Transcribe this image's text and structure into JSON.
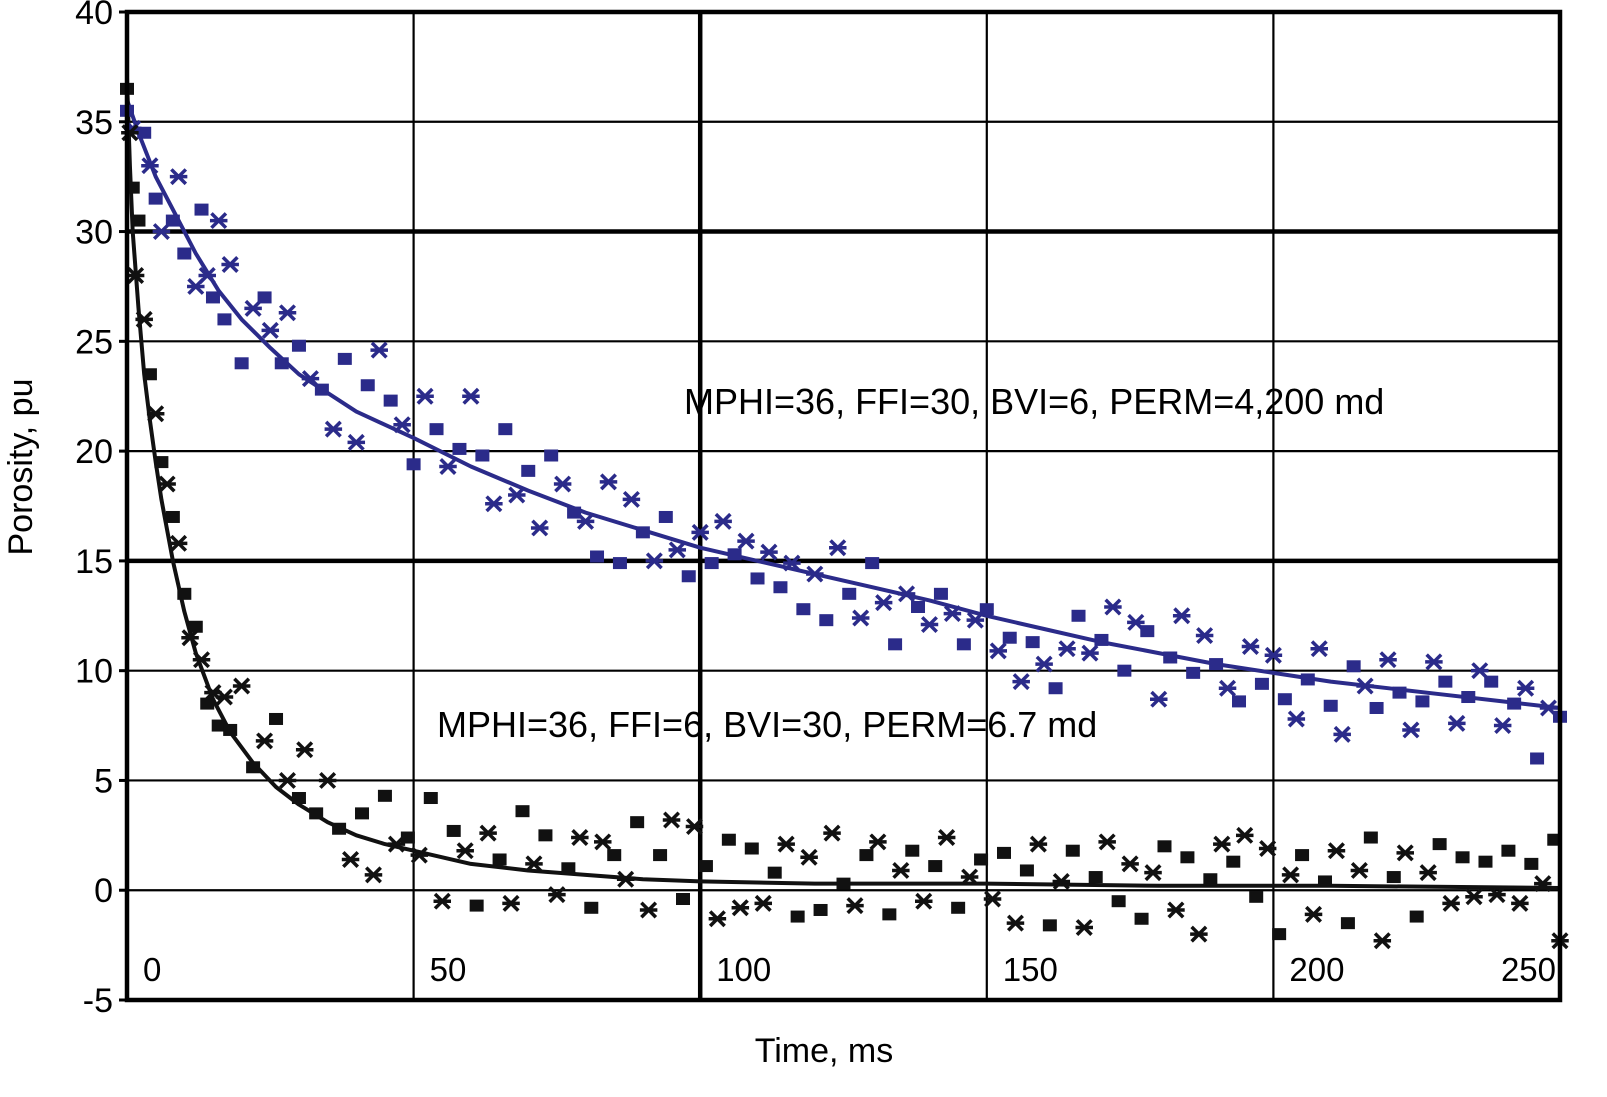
{
  "chart_data": {
    "type": "scatter",
    "xlabel": "Time, ms",
    "ylabel": "Porosity, pu",
    "xlim": [
      0,
      250
    ],
    "ylim": [
      -5,
      40
    ],
    "xticks": [
      "0",
      "50",
      "100",
      "150",
      "200",
      "250"
    ],
    "yticks": [
      "40",
      "35",
      "30",
      "25",
      "20",
      "15",
      "10",
      "5",
      "0",
      "-5"
    ],
    "grid": true,
    "annotations": [
      "MPHI=36, FFI=30, BVI=6, PERM=4,200 md",
      "MPHI=36, FFI=6, BVI=30, PERM=6.7 md"
    ],
    "series": [
      {
        "color": "#2b2b8a",
        "fit": [
          [
            0,
            36
          ],
          [
            2,
            34.5
          ],
          [
            5,
            32.5
          ],
          [
            8,
            31
          ],
          [
            12,
            29
          ],
          [
            16,
            27.3
          ],
          [
            20,
            26
          ],
          [
            25,
            24.7
          ],
          [
            30,
            23.5
          ],
          [
            40,
            21.8
          ],
          [
            50,
            20.6
          ],
          [
            60,
            19.3
          ],
          [
            70,
            18.2
          ],
          [
            80,
            17.2
          ],
          [
            90,
            16.4
          ],
          [
            100,
            15.6
          ],
          [
            110,
            15
          ],
          [
            120,
            14.4
          ],
          [
            130,
            13.8
          ],
          [
            140,
            13.2
          ],
          [
            150,
            12.5
          ],
          [
            160,
            11.9
          ],
          [
            170,
            11.3
          ],
          [
            180,
            10.8
          ],
          [
            190,
            10.3
          ],
          [
            200,
            9.9
          ],
          [
            210,
            9.5
          ],
          [
            220,
            9.2
          ],
          [
            230,
            8.9
          ],
          [
            240,
            8.6
          ],
          [
            250,
            8.3
          ]
        ],
        "points": [
          [
            0,
            35.5
          ],
          [
            1,
            34.7
          ],
          [
            3,
            34.5
          ],
          [
            4,
            33
          ],
          [
            5,
            31.5
          ],
          [
            6,
            30
          ],
          [
            8,
            30.5
          ],
          [
            9,
            32.5
          ],
          [
            10,
            29
          ],
          [
            12,
            27.5
          ],
          [
            13,
            31
          ],
          [
            14,
            28
          ],
          [
            15,
            27
          ],
          [
            16,
            30.5
          ],
          [
            17,
            26
          ],
          [
            18,
            28.5
          ],
          [
            20,
            24
          ],
          [
            22,
            26.5
          ],
          [
            24,
            27
          ],
          [
            25,
            25.5
          ],
          [
            27,
            24
          ],
          [
            28,
            26.3
          ],
          [
            30,
            24.8
          ],
          [
            32,
            23.3
          ],
          [
            34,
            22.8
          ],
          [
            36,
            21
          ],
          [
            38,
            24.2
          ],
          [
            40,
            20.4
          ],
          [
            42,
            23
          ],
          [
            44,
            24.6
          ],
          [
            46,
            22.3
          ],
          [
            48,
            21.2
          ],
          [
            50,
            19.4
          ],
          [
            52,
            22.5
          ],
          [
            54,
            21
          ],
          [
            56,
            19.3
          ],
          [
            58,
            20.1
          ],
          [
            60,
            22.5
          ],
          [
            62,
            19.8
          ],
          [
            64,
            17.6
          ],
          [
            66,
            21
          ],
          [
            68,
            18
          ],
          [
            70,
            19.1
          ],
          [
            72,
            16.5
          ],
          [
            74,
            19.8
          ],
          [
            76,
            18.5
          ],
          [
            78,
            17.2
          ],
          [
            80,
            16.8
          ],
          [
            82,
            15.2
          ],
          [
            84,
            18.6
          ],
          [
            86,
            14.9
          ],
          [
            88,
            17.8
          ],
          [
            90,
            16.3
          ],
          [
            92,
            15
          ],
          [
            94,
            17
          ],
          [
            96,
            15.5
          ],
          [
            98,
            14.3
          ],
          [
            100,
            16.3
          ],
          [
            102,
            14.9
          ],
          [
            104,
            16.8
          ],
          [
            106,
            15.3
          ],
          [
            108,
            15.9
          ],
          [
            110,
            14.2
          ],
          [
            112,
            15.4
          ],
          [
            114,
            13.8
          ],
          [
            116,
            14.9
          ],
          [
            118,
            12.8
          ],
          [
            120,
            14.4
          ],
          [
            122,
            12.3
          ],
          [
            124,
            15.6
          ],
          [
            126,
            13.5
          ],
          [
            128,
            12.4
          ],
          [
            130,
            14.9
          ],
          [
            132,
            13.1
          ],
          [
            134,
            11.2
          ],
          [
            136,
            13.5
          ],
          [
            138,
            12.9
          ],
          [
            140,
            12.1
          ],
          [
            142,
            13.5
          ],
          [
            144,
            12.6
          ],
          [
            146,
            11.2
          ],
          [
            148,
            12.3
          ],
          [
            150,
            12.8
          ],
          [
            152,
            10.9
          ],
          [
            154,
            11.5
          ],
          [
            156,
            9.5
          ],
          [
            158,
            11.3
          ],
          [
            160,
            10.3
          ],
          [
            162,
            9.2
          ],
          [
            164,
            11
          ],
          [
            166,
            12.5
          ],
          [
            168,
            10.8
          ],
          [
            170,
            11.4
          ],
          [
            172,
            12.9
          ],
          [
            174,
            10
          ],
          [
            176,
            12.2
          ],
          [
            178,
            11.8
          ],
          [
            180,
            8.7
          ],
          [
            182,
            10.6
          ],
          [
            184,
            12.5
          ],
          [
            186,
            9.9
          ],
          [
            188,
            11.6
          ],
          [
            190,
            10.3
          ],
          [
            192,
            9.2
          ],
          [
            194,
            8.6
          ],
          [
            196,
            11.1
          ],
          [
            198,
            9.4
          ],
          [
            200,
            10.7
          ],
          [
            202,
            8.7
          ],
          [
            204,
            7.8
          ],
          [
            206,
            9.6
          ],
          [
            208,
            11
          ],
          [
            210,
            8.4
          ],
          [
            212,
            7.1
          ],
          [
            214,
            10.2
          ],
          [
            216,
            9.3
          ],
          [
            218,
            8.3
          ],
          [
            220,
            10.5
          ],
          [
            222,
            9
          ],
          [
            224,
            7.3
          ],
          [
            226,
            8.6
          ],
          [
            228,
            10.4
          ],
          [
            230,
            9.5
          ],
          [
            232,
            7.6
          ],
          [
            234,
            8.8
          ],
          [
            236,
            10
          ],
          [
            238,
            9.5
          ],
          [
            240,
            7.5
          ],
          [
            242,
            8.5
          ],
          [
            244,
            9.2
          ],
          [
            246,
            6
          ],
          [
            248,
            8.3
          ],
          [
            250,
            7.9
          ]
        ]
      },
      {
        "color": "#111111",
        "fit": [
          [
            0,
            37
          ],
          [
            0.5,
            33
          ],
          [
            1,
            30
          ],
          [
            2,
            26.5
          ],
          [
            3,
            23.5
          ],
          [
            4,
            21.4
          ],
          [
            5,
            19.5
          ],
          [
            6,
            17.8
          ],
          [
            8,
            15
          ],
          [
            10,
            12.7
          ],
          [
            12,
            10.8
          ],
          [
            15,
            8.7
          ],
          [
            18,
            7.2
          ],
          [
            22,
            5.8
          ],
          [
            26,
            4.7
          ],
          [
            30,
            3.9
          ],
          [
            35,
            3.1
          ],
          [
            40,
            2.5
          ],
          [
            45,
            2.1
          ],
          [
            50,
            1.8
          ],
          [
            60,
            1.2
          ],
          [
            70,
            0.9
          ],
          [
            80,
            0.7
          ],
          [
            90,
            0.5
          ],
          [
            100,
            0.4
          ],
          [
            120,
            0.3
          ],
          [
            150,
            0.3
          ],
          [
            180,
            0.2
          ],
          [
            210,
            0.2
          ],
          [
            250,
            0.1
          ]
        ],
        "points": [
          [
            0,
            36.5
          ],
          [
            0.5,
            34.5
          ],
          [
            1,
            32
          ],
          [
            1.5,
            28
          ],
          [
            2,
            30.5
          ],
          [
            3,
            26
          ],
          [
            4,
            23.5
          ],
          [
            5,
            21.7
          ],
          [
            6,
            19.5
          ],
          [
            7,
            18.5
          ],
          [
            8,
            17
          ],
          [
            9,
            15.8
          ],
          [
            10,
            13.5
          ],
          [
            11,
            11.5
          ],
          [
            12,
            12
          ],
          [
            13,
            10.5
          ],
          [
            14,
            8.5
          ],
          [
            15,
            9
          ],
          [
            16,
            7.5
          ],
          [
            17,
            8.8
          ],
          [
            18,
            7.3
          ],
          [
            20,
            9.3
          ],
          [
            22,
            5.6
          ],
          [
            24,
            6.8
          ],
          [
            26,
            7.8
          ],
          [
            28,
            5
          ],
          [
            30,
            4.2
          ],
          [
            31,
            6.4
          ],
          [
            33,
            3.5
          ],
          [
            35,
            5
          ],
          [
            37,
            2.8
          ],
          [
            39,
            1.4
          ],
          [
            41,
            3.5
          ],
          [
            43,
            0.7
          ],
          [
            45,
            4.3
          ],
          [
            47,
            2.1
          ],
          [
            49,
            2.4
          ],
          [
            51,
            1.6
          ],
          [
            53,
            4.2
          ],
          [
            55,
            -0.5
          ],
          [
            57,
            2.7
          ],
          [
            59,
            1.8
          ],
          [
            61,
            -0.7
          ],
          [
            63,
            2.6
          ],
          [
            65,
            1.4
          ],
          [
            67,
            -0.6
          ],
          [
            69,
            3.6
          ],
          [
            71,
            1.2
          ],
          [
            73,
            2.5
          ],
          [
            75,
            -0.2
          ],
          [
            77,
            1
          ],
          [
            79,
            2.4
          ],
          [
            81,
            -0.8
          ],
          [
            83,
            2.2
          ],
          [
            85,
            1.6
          ],
          [
            87,
            0.5
          ],
          [
            89,
            3.1
          ],
          [
            91,
            -0.9
          ],
          [
            93,
            1.6
          ],
          [
            95,
            3.2
          ],
          [
            97,
            -0.4
          ],
          [
            99,
            2.9
          ],
          [
            101,
            1.1
          ],
          [
            103,
            -1.3
          ],
          [
            105,
            2.3
          ],
          [
            107,
            -0.8
          ],
          [
            109,
            1.9
          ],
          [
            111,
            -0.6
          ],
          [
            113,
            0.8
          ],
          [
            115,
            2.1
          ],
          [
            117,
            -1.2
          ],
          [
            119,
            1.5
          ],
          [
            121,
            -0.9
          ],
          [
            123,
            2.6
          ],
          [
            125,
            0.3
          ],
          [
            127,
            -0.7
          ],
          [
            129,
            1.6
          ],
          [
            131,
            2.2
          ],
          [
            133,
            -1.1
          ],
          [
            135,
            0.9
          ],
          [
            137,
            1.8
          ],
          [
            139,
            -0.5
          ],
          [
            141,
            1.1
          ],
          [
            143,
            2.4
          ],
          [
            145,
            -0.8
          ],
          [
            147,
            0.6
          ],
          [
            149,
            1.4
          ],
          [
            151,
            -0.4
          ],
          [
            153,
            1.7
          ],
          [
            155,
            -1.5
          ],
          [
            157,
            0.9
          ],
          [
            159,
            2.1
          ],
          [
            161,
            -1.6
          ],
          [
            163,
            0.4
          ],
          [
            165,
            1.8
          ],
          [
            167,
            -1.7
          ],
          [
            169,
            0.6
          ],
          [
            171,
            2.2
          ],
          [
            173,
            -0.5
          ],
          [
            175,
            1.2
          ],
          [
            177,
            -1.3
          ],
          [
            179,
            0.8
          ],
          [
            181,
            2
          ],
          [
            183,
            -0.9
          ],
          [
            185,
            1.5
          ],
          [
            187,
            -2
          ],
          [
            189,
            0.5
          ],
          [
            191,
            2.1
          ],
          [
            193,
            1.3
          ],
          [
            195,
            2.5
          ],
          [
            197,
            -0.3
          ],
          [
            199,
            1.9
          ],
          [
            201,
            -2
          ],
          [
            203,
            0.7
          ],
          [
            205,
            1.6
          ],
          [
            207,
            -1.1
          ],
          [
            209,
            0.4
          ],
          [
            211,
            1.8
          ],
          [
            213,
            -1.5
          ],
          [
            215,
            0.9
          ],
          [
            217,
            2.4
          ],
          [
            219,
            -2.3
          ],
          [
            221,
            0.6
          ],
          [
            223,
            1.7
          ],
          [
            225,
            -1.2
          ],
          [
            227,
            0.8
          ],
          [
            229,
            2.1
          ],
          [
            231,
            -0.6
          ],
          [
            233,
            1.5
          ],
          [
            235,
            -0.3
          ],
          [
            237,
            1.3
          ],
          [
            239,
            -0.2
          ],
          [
            241,
            1.8
          ],
          [
            243,
            -0.6
          ],
          [
            245,
            1.2
          ],
          [
            247,
            0.3
          ],
          [
            249,
            2.3
          ],
          [
            250,
            -2.3
          ]
        ]
      }
    ]
  }
}
